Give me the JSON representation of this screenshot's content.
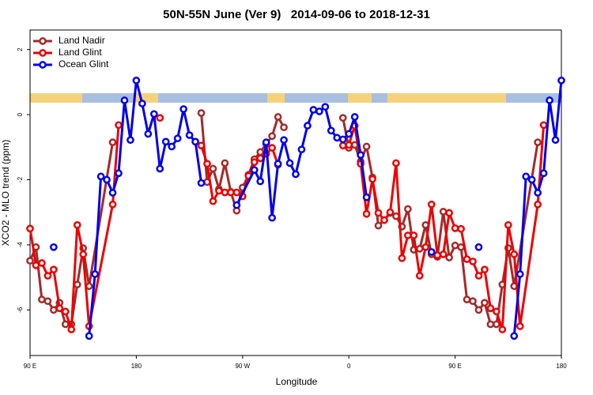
{
  "chart_data": {
    "type": "line",
    "title": "50N-55N June (Ver 9)   2014-09-06 to 2018-12-31",
    "x_label": "Longitude",
    "y_label": "XCO2 - MLO trend (ppm)",
    "xlim": [
      90,
      540
    ],
    "xticks": [
      {
        "value": 90,
        "label": "90 E"
      },
      {
        "value": 180,
        "label": "180"
      },
      {
        "value": 270,
        "label": "90 W"
      },
      {
        "value": 360,
        "label": "0"
      },
      {
        "value": 450,
        "label": "90 E"
      },
      {
        "value": 540,
        "label": "180"
      }
    ],
    "ylim": [
      -7.4,
      2.6
    ],
    "yticks": [
      -6,
      -4,
      -2,
      0,
      2
    ],
    "legend": "top-left",
    "series": [
      {
        "name": "Land Nadir",
        "color": "#a52a2a",
        "x": [
          90,
          95,
          100,
          105,
          110,
          115,
          120,
          125,
          130,
          135,
          140,
          160,
          200,
          235,
          240,
          245,
          250,
          255,
          260,
          265,
          270,
          275,
          280,
          285,
          290,
          295,
          300,
          305,
          330,
          355,
          360,
          365,
          370,
          375,
          380,
          385,
          390,
          395,
          400,
          405,
          410,
          415,
          420,
          425,
          430,
          435,
          440,
          445,
          450,
          455,
          460,
          465,
          470,
          475,
          480,
          485,
          490,
          495,
          500,
          520
        ],
        "values": [
          -4.49,
          -4.07,
          -5.68,
          -5.73,
          -6.0,
          -5.78,
          -6.44,
          -6.44,
          -5.22,
          -4.1,
          -5.27,
          -0.85,
          null,
          0.05,
          -2.07,
          -1.66,
          -2.29,
          -1.49,
          -2.37,
          -2.95,
          -2.24,
          -1.85,
          -1.37,
          -1.15,
          -0.9,
          -0.66,
          -0.07,
          -0.39,
          null,
          -0.1,
          -1.02,
          -0.93,
          -1.44,
          -0.98,
          -1.93,
          -3.41,
          -3.24,
          -3.02,
          -3.12,
          -3.44,
          -2.9,
          -4.15,
          -4.12,
          -3.39,
          -4.29,
          -4.37,
          -2.98,
          -4.39,
          -4.02,
          -4.07,
          -5.68,
          -5.73,
          -6.0,
          -5.78,
          -6.44,
          -6.44,
          -5.22,
          -4.1,
          -5.27,
          -0.85
        ]
      },
      {
        "name": "Land Glint",
        "color": "#ee0000",
        "x": [
          90,
          95,
          100,
          105,
          110,
          115,
          120,
          125,
          130,
          135,
          140,
          160,
          165,
          180,
          200,
          220,
          235,
          240,
          245,
          250,
          255,
          260,
          265,
          270,
          275,
          280,
          285,
          290,
          295,
          300,
          330,
          355,
          360,
          365,
          370,
          375,
          380,
          385,
          390,
          395,
          400,
          405,
          410,
          415,
          420,
          425,
          430,
          435,
          440,
          445,
          450,
          455,
          460,
          465,
          470,
          475,
          480,
          485,
          490,
          495,
          500,
          505,
          520,
          525
        ],
        "values": [
          -3.5,
          -4.63,
          -4.56,
          -4.95,
          -4.76,
          -5.95,
          -6.05,
          -6.6,
          -3.39,
          -4.29,
          -6.5,
          -2.76,
          -0.32,
          null,
          -0.1,
          null,
          -0.95,
          -1.51,
          -2.66,
          -2.34,
          -2.39,
          -2.39,
          -2.39,
          -2.51,
          -1.88,
          -1.46,
          -1.34,
          -1.2,
          -1.02,
          -1.54,
          null,
          -0.95,
          -0.93,
          -0.34,
          -1.51,
          -3.05,
          -1.98,
          -3.02,
          -3.24,
          -3.0,
          -1.49,
          -4.41,
          -3.71,
          -3.71,
          -4.95,
          -4.07,
          -2.76,
          -4.32,
          -4.29,
          -3.02,
          -3.49,
          -3.51,
          -4.44,
          -4.51,
          -4.95,
          -4.76,
          -5.95,
          -6.05,
          -6.6,
          -3.39,
          -4.29,
          -6.5,
          -2.76,
          -0.32
        ]
      },
      {
        "name": "Ocean Glint",
        "color": "#0000ee",
        "x": [
          110,
          125,
          140,
          145,
          150,
          155,
          160,
          165,
          170,
          175,
          180,
          185,
          190,
          195,
          200,
          205,
          210,
          215,
          220,
          225,
          230,
          235,
          250,
          265,
          280,
          285,
          290,
          295,
          300,
          305,
          310,
          315,
          320,
          325,
          330,
          335,
          340,
          345,
          350,
          355,
          360,
          365,
          370,
          375,
          400,
          430,
          450,
          470,
          485,
          500,
          505,
          510,
          515,
          520,
          525,
          530,
          535,
          540
        ],
        "values": [
          -4.07,
          null,
          -6.8,
          -4.9,
          -1.9,
          -2.0,
          -2.4,
          -1.8,
          0.44,
          -0.78,
          1.05,
          0.34,
          -0.59,
          0.02,
          -1.66,
          -0.83,
          -0.98,
          -0.73,
          0.17,
          -0.63,
          -0.83,
          -2.1,
          null,
          -2.78,
          -1.7,
          -2.05,
          -0.85,
          -3.17,
          -1.51,
          -0.78,
          -1.49,
          -1.83,
          -1.07,
          -0.34,
          0.15,
          0.1,
          0.24,
          -0.49,
          -0.71,
          -0.76,
          -0.59,
          -0.07,
          -1.24,
          -2.54,
          null,
          -4.22,
          null,
          -4.07,
          null,
          -6.8,
          -4.9,
          -1.9,
          -2.0,
          -2.4,
          -1.8,
          0.44,
          -0.78,
          1.05
        ]
      }
    ]
  }
}
